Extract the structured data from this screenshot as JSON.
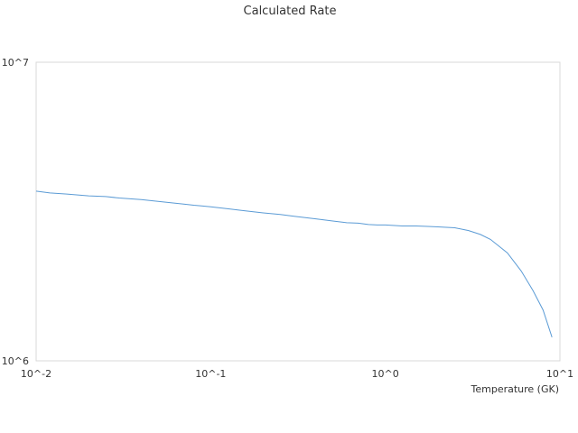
{
  "chart_data": {
    "type": "line",
    "title": "Calculated Rate",
    "xlabel": "Temperature (GK)",
    "ylabel": "",
    "x_scale": "log",
    "y_scale": "log",
    "xlim": [
      0.01,
      10
    ],
    "ylim": [
      1000000,
      10000000
    ],
    "x_ticks": [
      {
        "value": 0.01,
        "label": "10^-2"
      },
      {
        "value": 0.1,
        "label": "10^-1"
      },
      {
        "value": 1,
        "label": "10^0"
      },
      {
        "value": 10,
        "label": "10^1"
      }
    ],
    "y_ticks": [
      {
        "value": 1000000,
        "label": "10^6"
      },
      {
        "value": 10000000,
        "label": "10^7"
      }
    ],
    "grid": false,
    "legend": "none",
    "colors": {
      "series": "#5b9bd5",
      "frame": "#d9d9d9"
    },
    "series": [
      {
        "x": [
          0.01,
          0.012,
          0.015,
          0.02,
          0.025,
          0.03,
          0.04,
          0.05,
          0.06,
          0.07,
          0.08,
          0.09,
          0.1,
          0.12,
          0.15,
          0.2,
          0.25,
          0.3,
          0.4,
          0.5,
          0.6,
          0.7,
          0.8,
          0.9,
          1.0,
          1.25,
          1.5,
          1.75,
          2.0,
          2.5,
          3.0,
          3.5,
          4.0,
          5.0,
          6.0,
          7.0,
          8.0,
          9.0
        ],
        "y": [
          3700000,
          3650000,
          3620000,
          3570000,
          3550000,
          3510000,
          3470000,
          3420000,
          3380000,
          3350000,
          3320000,
          3300000,
          3280000,
          3240000,
          3190000,
          3130000,
          3090000,
          3050000,
          2990000,
          2940000,
          2900000,
          2890000,
          2860000,
          2850000,
          2850000,
          2830000,
          2830000,
          2820000,
          2810000,
          2790000,
          2730000,
          2650000,
          2550000,
          2300000,
          2000000,
          1720000,
          1480000,
          1200000
        ]
      }
    ]
  }
}
